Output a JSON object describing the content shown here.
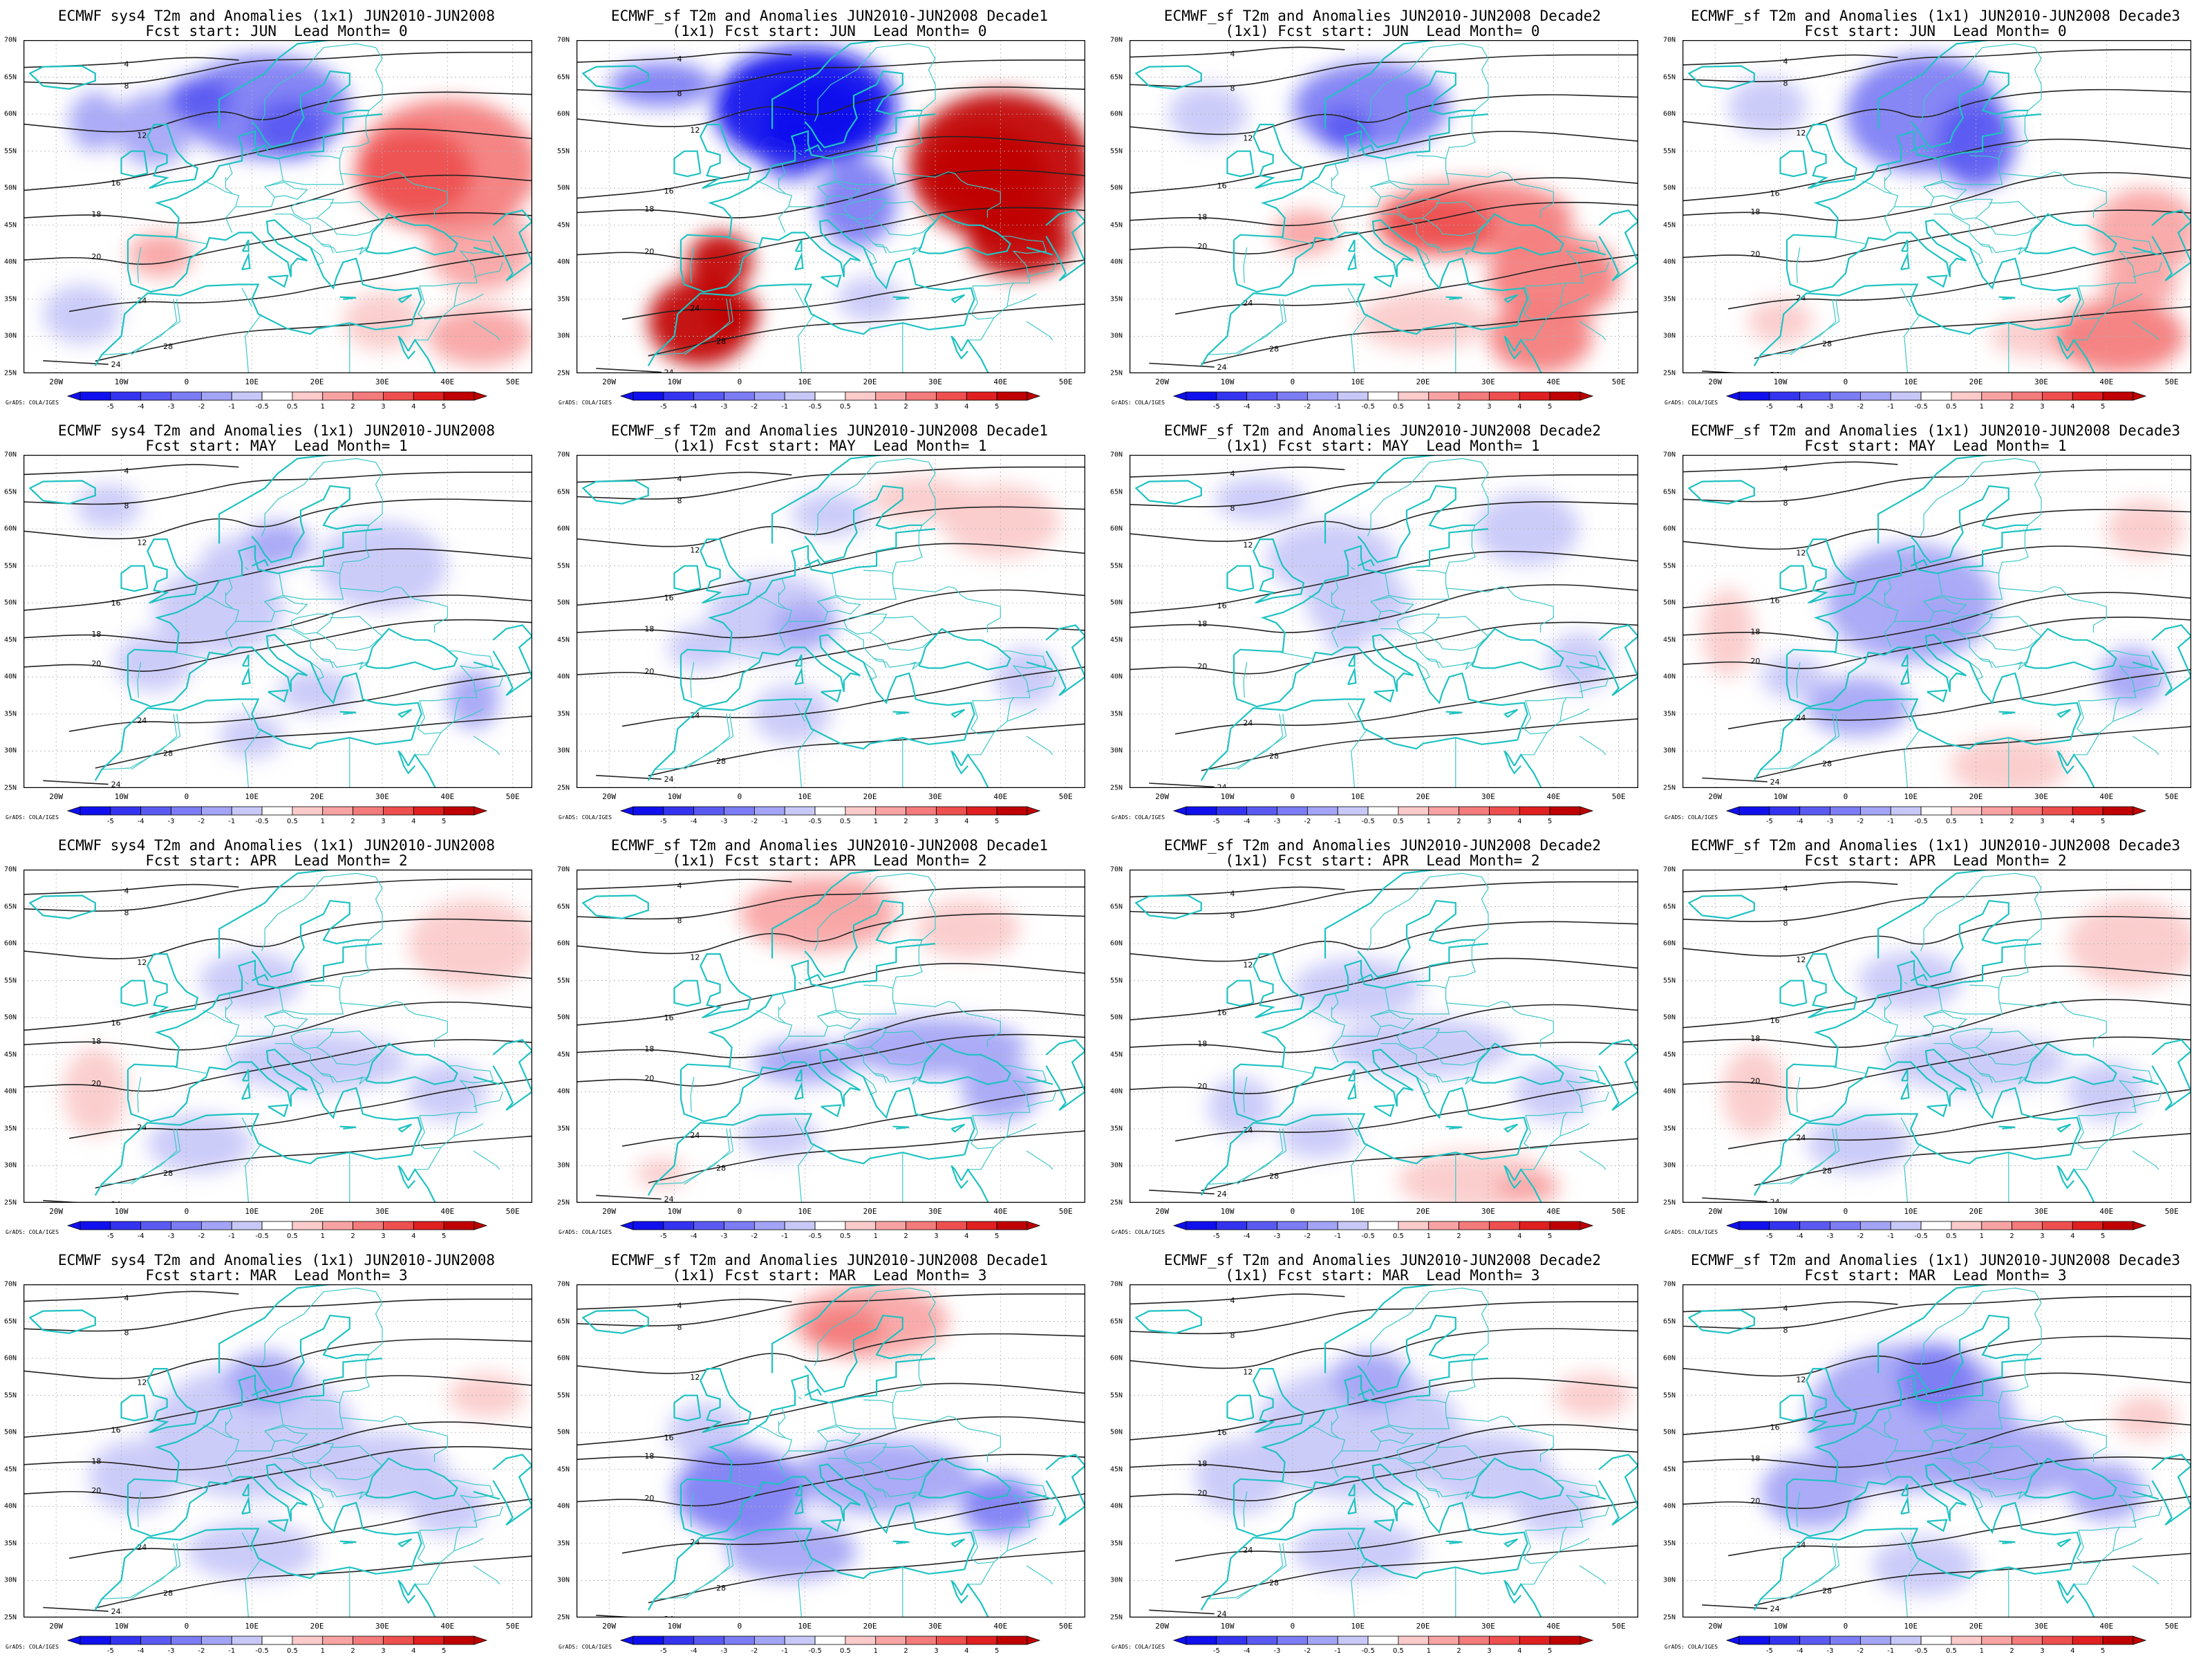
{
  "credit": "GrADS: COLA/IGES",
  "lon_labels": [
    "20W",
    "10W",
    "0",
    "10E",
    "20E",
    "30E",
    "40E",
    "50E"
  ],
  "lat_labels": [
    "70N",
    "65N",
    "60N",
    "55N",
    "50N",
    "45N",
    "40N",
    "35N",
    "30N",
    "25N"
  ],
  "colorbar": {
    "labels": [
      "-5",
      "-4",
      "-3",
      "-2",
      "-1",
      "-0.5",
      "0.5",
      "1",
      "2",
      "3",
      "4",
      "5"
    ],
    "colors": [
      "#1010ee",
      "#3434f0",
      "#5a5af2",
      "#7c7cf4",
      "#a4a4f6",
      "#c8c8f8",
      "#ffffff",
      "#fbcaca",
      "#f8a3a3",
      "#f47b7b",
      "#ee4f4f",
      "#e02020",
      "#c00000"
    ]
  },
  "panels": [
    {
      "title1": "ECMWF sys4 T2m and Anomalies (1x1) JUN2010-JUN2008",
      "title2": "Fcst start: JUN  Lead Month= 0",
      "pattern": "cold-north-hot-east",
      "intensity": 1.0
    },
    {
      "title1": "ECMWF_sf T2m and Anomalies JUN2010-JUN2008 Decade1",
      "title2": "(1x1) Fcst start: JUN  Lead Month= 0",
      "pattern": "strong-cold-north-hot-iberia-east",
      "intensity": 1.4
    },
    {
      "title1": "ECMWF_sf T2m and Anomalies JUN2010-JUN2008 Decade2",
      "title2": "(1x1) Fcst start: JUN  Lead Month= 0",
      "pattern": "cold-north-hot-central",
      "intensity": 1.0
    },
    {
      "title1": "ECMWF_sf T2m and Anomalies (1x1) JUN2010-JUN2008 Decade3",
      "title2": "Fcst start: JUN  Lead Month= 0",
      "pattern": "cold-center-hot-east",
      "intensity": 0.9
    },
    {
      "title1": "ECMWF sys4 T2m and Anomalies (1x1) JUN2010-JUN2008",
      "title2": "Fcst start: MAY  Lead Month= 1",
      "pattern": "mild-cold-center",
      "intensity": 0.7
    },
    {
      "title1": "ECMWF_sf T2m and Anomalies JUN2010-JUN2008 Decade1",
      "title2": "(1x1) Fcst start: MAY  Lead Month= 1",
      "pattern": "mild-cold-center-warm-ne",
      "intensity": 0.7
    },
    {
      "title1": "ECMWF_sf T2m and Anomalies JUN2010-JUN2008 Decade2",
      "title2": "(1x1) Fcst start: MAY  Lead Month= 1",
      "pattern": "weak-cold",
      "intensity": 0.5
    },
    {
      "title1": "ECMWF_sf T2m and Anomalies (1x1) JUN2010-JUN2008 Decade3",
      "title2": "Fcst start: MAY  Lead Month= 1",
      "pattern": "cold-center-warm-south",
      "intensity": 0.8
    },
    {
      "title1": "ECMWF sys4 T2m and Anomalies (1x1) JUN2010-JUN2008",
      "title2": "Fcst start: APR  Lead Month= 2",
      "pattern": "cold-south-warm-ne",
      "intensity": 0.6
    },
    {
      "title1": "ECMWF_sf T2m and Anomalies JUN2010-JUN2008 Decade1",
      "title2": "(1x1) Fcst start: APR  Lead Month= 2",
      "pattern": "cold-south-warm-north",
      "intensity": 0.8
    },
    {
      "title1": "ECMWF_sf T2m and Anomalies JUN2010-JUN2008 Decade2",
      "title2": "(1x1) Fcst start: APR  Lead Month= 2",
      "pattern": "cold-south-warm-africa",
      "intensity": 0.6
    },
    {
      "title1": "ECMWF_sf T2m and Anomalies (1x1) JUN2010-JUN2008 Decade3",
      "title2": "Fcst start: APR  Lead Month= 2",
      "pattern": "cold-south-warm-ne",
      "intensity": 0.7
    },
    {
      "title1": "ECMWF sys4 T2m and Anomalies (1x1) JUN2010-JUN2008",
      "title2": "Fcst start: MAR  Lead Month= 3",
      "pattern": "broad-cold",
      "intensity": 0.7
    },
    {
      "title1": "ECMWF_sf T2m and Anomalies JUN2010-JUN2008 Decade1",
      "title2": "(1x1) Fcst start: MAR  Lead Month= 3",
      "pattern": "cold-south-warm-scand",
      "intensity": 0.9
    },
    {
      "title1": "ECMWF_sf T2m and Anomalies JUN2010-JUN2008 Decade2",
      "title2": "(1x1) Fcst start: MAR  Lead Month= 3",
      "pattern": "broad-cold",
      "intensity": 0.6
    },
    {
      "title1": "ECMWF_sf T2m and Anomalies (1x1) JUN2010-JUN2008 Decade3",
      "title2": "Fcst start: MAR  Lead Month= 3",
      "pattern": "broad-cold-strong",
      "intensity": 0.9
    }
  ]
}
